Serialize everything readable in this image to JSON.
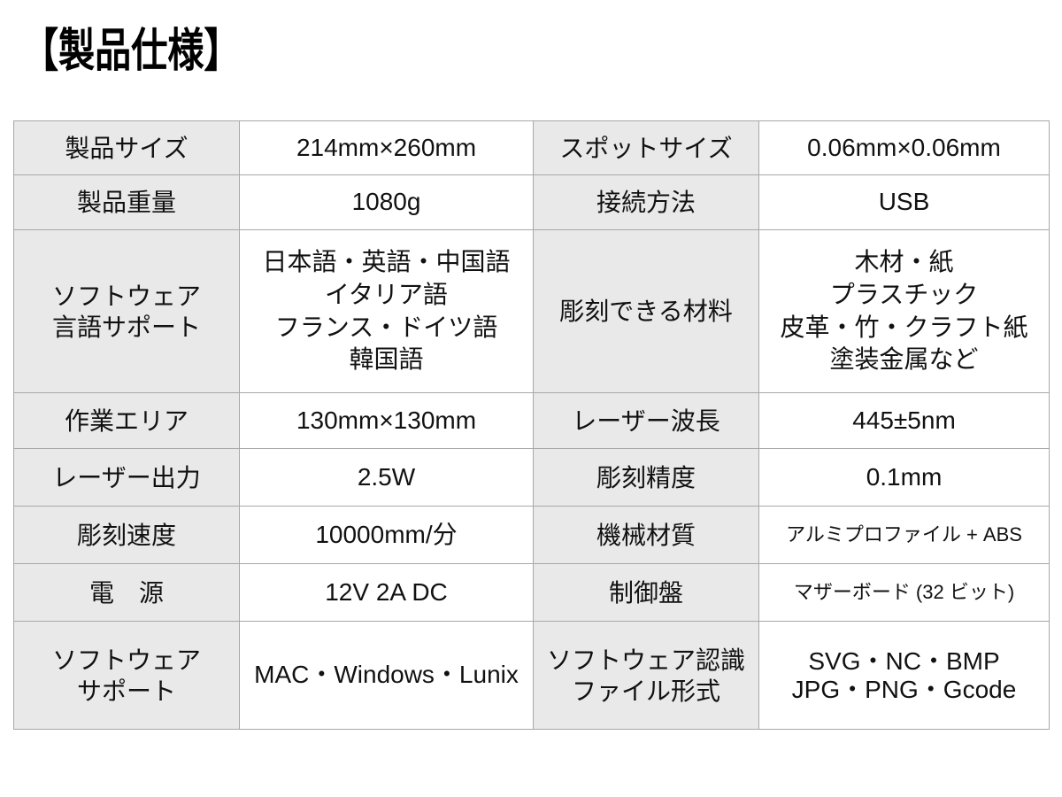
{
  "title": "【製品仕様】",
  "colors": {
    "page_bg": "#ffffff",
    "label_cell_bg": "#e9e9e9",
    "border": "#a8a8a8",
    "text": "#111111"
  },
  "rows": [
    {
      "l_label": "製品サイズ",
      "l_value": "214mm×260mm",
      "r_label": "スポットサイズ",
      "r_value": "0.06mm×0.06mm"
    },
    {
      "l_label": "製品重量",
      "l_value": "1080g",
      "r_label": "接続方法",
      "r_value": "USB"
    },
    {
      "l_label": "ソフトウェア\n言語サポート",
      "l_value": "日本語・英語・中国語\nイタリア語\nフランス・ドイツ語\n韓国語",
      "r_label": "彫刻できる材料",
      "r_value": "木材・紙\nプラスチック\n皮革・竹・クラフト紙\n塗装金属など"
    },
    {
      "l_label": "作業エリア",
      "l_value": "130mm×130mm",
      "r_label": "レーザー波長",
      "r_value": "445±5nm"
    },
    {
      "l_label": "レーザー出力",
      "l_value": "2.5W",
      "r_label": "彫刻精度",
      "r_value": "0.1mm"
    },
    {
      "l_label": "彫刻速度",
      "l_value": "10000mm/分",
      "r_label": "機械材質",
      "r_value": "アルミプロファイル + ABS"
    },
    {
      "l_label": "電　源",
      "l_value": "12V 2A DC",
      "r_label": "制御盤",
      "r_value": "マザーボード (32 ビット)"
    },
    {
      "l_label": "ソフトウェア\nサポート",
      "l_value": "MAC・Windows・Lunix",
      "r_label": "ソフトウェア認識\nファイル形式",
      "r_value": "SVG・NC・BMP\nJPG・PNG・Gcode"
    }
  ]
}
